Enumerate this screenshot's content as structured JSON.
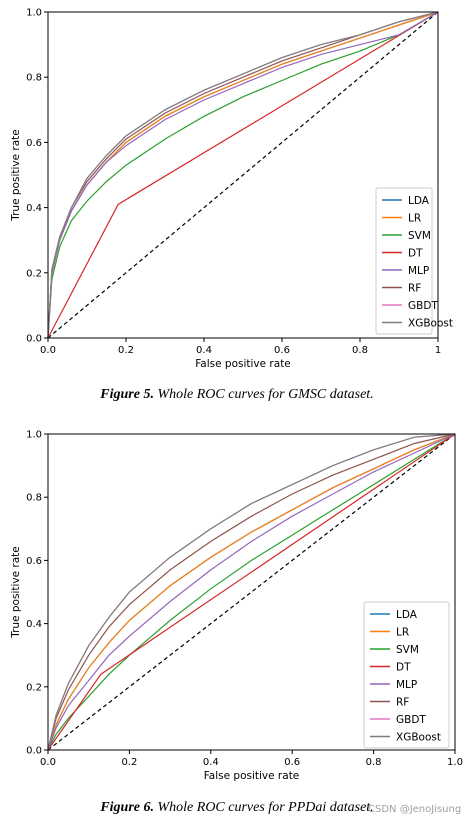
{
  "figures": [
    {
      "caption_label": "Figure 5.",
      "caption_text": " Whole ROC curves for GMSC dataset."
    },
    {
      "caption_label": "Figure 6.",
      "caption_text": " Whole ROC curves for PPDai dataset."
    }
  ],
  "watermark": "CSDN @JenoJisung",
  "colors": {
    "LDA": "#1f77b4",
    "LR": "#ff7f0e",
    "SVM": "#2ca02c",
    "DT": "#d62728",
    "MLP": "#9467bd",
    "RF": "#8c564b",
    "GBDT": "#e377c2",
    "XGBoost": "#7f7f7f"
  },
  "chart_data": [
    {
      "type": "line",
      "xlabel": "False positive rate",
      "ylabel": "True positive rate",
      "xlim": [
        0,
        1
      ],
      "ylim": [
        0,
        1
      ],
      "xticks": [
        "0.0",
        "0.2",
        "0.4",
        "0.6",
        "0.8",
        "1"
      ],
      "yticks": [
        "0.0",
        "0.2",
        "0.4",
        "0.6",
        "0.8",
        "1.0"
      ],
      "legend": "lower-right",
      "diagonal": true,
      "series": [
        {
          "name": "LDA",
          "x": [
            0,
            0.01,
            0.03,
            0.06,
            0.1,
            0.15,
            0.2,
            0.3,
            0.4,
            0.5,
            0.6,
            0.7,
            0.8,
            0.9,
            1
          ],
          "y": [
            0,
            0.2,
            0.3,
            0.39,
            0.47,
            0.54,
            0.6,
            0.68,
            0.74,
            0.79,
            0.84,
            0.88,
            0.92,
            0.96,
            1
          ]
        },
        {
          "name": "LR",
          "x": [
            0,
            0.01,
            0.03,
            0.06,
            0.1,
            0.15,
            0.2,
            0.3,
            0.4,
            0.5,
            0.6,
            0.7,
            0.8,
            0.9,
            1
          ],
          "y": [
            0,
            0.2,
            0.3,
            0.39,
            0.47,
            0.54,
            0.6,
            0.68,
            0.74,
            0.79,
            0.84,
            0.88,
            0.92,
            0.96,
            1
          ]
        },
        {
          "name": "SVM",
          "x": [
            0,
            0.01,
            0.03,
            0.06,
            0.1,
            0.15,
            0.2,
            0.3,
            0.4,
            0.5,
            0.6,
            0.7,
            0.8,
            0.9,
            1
          ],
          "y": [
            0,
            0.18,
            0.28,
            0.36,
            0.42,
            0.48,
            0.53,
            0.61,
            0.68,
            0.74,
            0.79,
            0.84,
            0.88,
            0.93,
            1
          ]
        },
        {
          "name": "DT",
          "x": [
            0,
            0.18,
            1
          ],
          "y": [
            0,
            0.41,
            1
          ]
        },
        {
          "name": "MLP",
          "x": [
            0,
            0.01,
            0.03,
            0.06,
            0.1,
            0.15,
            0.2,
            0.3,
            0.4,
            0.5,
            0.6,
            0.7,
            0.8,
            0.9,
            1
          ],
          "y": [
            0,
            0.2,
            0.3,
            0.39,
            0.47,
            0.54,
            0.59,
            0.67,
            0.73,
            0.78,
            0.83,
            0.87,
            0.9,
            0.93,
            1
          ]
        },
        {
          "name": "RF",
          "x": [
            0,
            0.01,
            0.03,
            0.06,
            0.1,
            0.15,
            0.2,
            0.3,
            0.4,
            0.5,
            0.6,
            0.7,
            0.8,
            0.9,
            1
          ],
          "y": [
            0,
            0.21,
            0.31,
            0.4,
            0.48,
            0.55,
            0.61,
            0.69,
            0.75,
            0.8,
            0.85,
            0.89,
            0.93,
            0.97,
            1
          ]
        },
        {
          "name": "GBDT",
          "x": [
            0,
            0.01,
            0.03,
            0.06,
            0.1,
            0.15,
            0.2,
            0.3,
            0.4,
            0.5,
            0.6,
            0.7,
            0.8,
            0.9,
            1
          ],
          "y": [
            0,
            0.21,
            0.31,
            0.4,
            0.49,
            0.56,
            0.62,
            0.7,
            0.76,
            0.81,
            0.86,
            0.9,
            0.93,
            0.97,
            1
          ]
        },
        {
          "name": "XGBoost",
          "x": [
            0,
            0.01,
            0.03,
            0.06,
            0.1,
            0.15,
            0.2,
            0.3,
            0.4,
            0.5,
            0.6,
            0.7,
            0.8,
            0.9,
            1
          ],
          "y": [
            0,
            0.21,
            0.31,
            0.4,
            0.49,
            0.56,
            0.62,
            0.7,
            0.76,
            0.81,
            0.86,
            0.9,
            0.93,
            0.97,
            1
          ]
        }
      ]
    },
    {
      "type": "line",
      "xlabel": "False positive rate",
      "ylabel": "True positive rate",
      "xlim": [
        0,
        1
      ],
      "ylim": [
        0,
        1
      ],
      "xticks": [
        "0.0",
        "0.2",
        "0.4",
        "0.6",
        "0.8",
        "1.0"
      ],
      "yticks": [
        "0.0",
        "0.2",
        "0.4",
        "0.6",
        "0.8",
        "1.0"
      ],
      "legend": "lower-right",
      "diagonal": true,
      "series": [
        {
          "name": "LDA",
          "x": [
            0,
            0.02,
            0.05,
            0.1,
            0.15,
            0.2,
            0.3,
            0.4,
            0.5,
            0.6,
            0.7,
            0.8,
            0.9,
            1
          ],
          "y": [
            0,
            0.08,
            0.16,
            0.26,
            0.34,
            0.41,
            0.52,
            0.61,
            0.69,
            0.76,
            0.83,
            0.89,
            0.95,
            1
          ]
        },
        {
          "name": "LR",
          "x": [
            0,
            0.02,
            0.05,
            0.1,
            0.15,
            0.2,
            0.3,
            0.4,
            0.5,
            0.6,
            0.7,
            0.8,
            0.9,
            1
          ],
          "y": [
            0,
            0.08,
            0.16,
            0.26,
            0.34,
            0.41,
            0.52,
            0.61,
            0.69,
            0.76,
            0.83,
            0.89,
            0.95,
            1
          ]
        },
        {
          "name": "SVM",
          "x": [
            0,
            0.02,
            0.05,
            0.1,
            0.15,
            0.2,
            0.3,
            0.4,
            0.5,
            0.6,
            0.7,
            0.8,
            0.9,
            1
          ],
          "y": [
            0,
            0.05,
            0.1,
            0.17,
            0.24,
            0.3,
            0.41,
            0.51,
            0.6,
            0.68,
            0.76,
            0.84,
            0.92,
            1
          ]
        },
        {
          "name": "DT",
          "x": [
            0,
            0.13,
            1
          ],
          "y": [
            0,
            0.24,
            1
          ]
        },
        {
          "name": "MLP",
          "x": [
            0,
            0.02,
            0.05,
            0.1,
            0.15,
            0.2,
            0.3,
            0.4,
            0.5,
            0.6,
            0.7,
            0.8,
            0.9,
            1
          ],
          "y": [
            0,
            0.07,
            0.14,
            0.22,
            0.3,
            0.36,
            0.47,
            0.57,
            0.66,
            0.74,
            0.81,
            0.88,
            0.94,
            1
          ]
        },
        {
          "name": "RF",
          "x": [
            0,
            0.02,
            0.05,
            0.1,
            0.15,
            0.2,
            0.3,
            0.4,
            0.5,
            0.6,
            0.7,
            0.8,
            0.9,
            1
          ],
          "y": [
            0,
            0.1,
            0.19,
            0.3,
            0.39,
            0.46,
            0.57,
            0.66,
            0.74,
            0.81,
            0.87,
            0.92,
            0.97,
            1
          ]
        },
        {
          "name": "GBDT",
          "x": [
            0,
            0.02,
            0.05,
            0.1,
            0.15,
            0.2,
            0.3,
            0.4,
            0.5,
            0.6,
            0.7,
            0.8,
            0.9,
            1
          ],
          "y": [
            0,
            0.11,
            0.21,
            0.33,
            0.42,
            0.5,
            0.61,
            0.7,
            0.78,
            0.84,
            0.9,
            0.95,
            0.99,
            1
          ]
        },
        {
          "name": "XGBoost",
          "x": [
            0,
            0.02,
            0.05,
            0.1,
            0.15,
            0.2,
            0.3,
            0.4,
            0.5,
            0.6,
            0.7,
            0.8,
            0.9,
            1
          ],
          "y": [
            0,
            0.11,
            0.21,
            0.33,
            0.42,
            0.5,
            0.61,
            0.7,
            0.78,
            0.84,
            0.9,
            0.95,
            0.99,
            1
          ]
        }
      ]
    }
  ]
}
